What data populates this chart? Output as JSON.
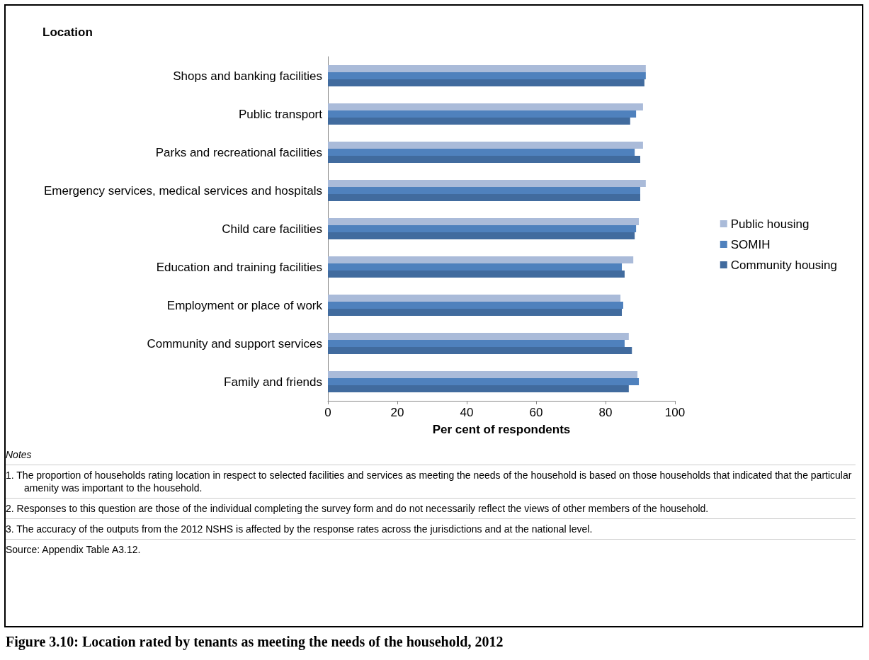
{
  "chart_data": {
    "type": "bar",
    "orientation": "horizontal",
    "title": "Figure 3.10: Location rated by tenants as meeting the needs of the household, 2012",
    "subtitle": "Location",
    "xlabel": "Per cent of respondents",
    "categories": [
      "Shops and banking facilities",
      "Public transport",
      "Parks and recreational facilities",
      "Emergency services, medical services and hospitals",
      "Child care facilities",
      "Education and training facilities",
      "Employment or place of work",
      "Community and support services",
      "Family and friends"
    ],
    "series": [
      {
        "name": "Public housing",
        "color": "#aabbd9",
        "values": [
          91.6,
          90.8,
          90.8,
          91.6,
          89.6,
          88.0,
          84.3,
          86.7,
          89.2
        ]
      },
      {
        "name": "SOMIH",
        "color": "#4f81bd",
        "values": [
          91.6,
          88.8,
          88.4,
          90.0,
          88.8,
          84.7,
          85.1,
          85.5,
          89.6
        ]
      },
      {
        "name": "Community housing",
        "color": "#416b9e",
        "values": [
          91.2,
          87.1,
          90.0,
          90.0,
          88.4,
          85.5,
          84.7,
          87.6,
          86.7
        ]
      }
    ],
    "xlim": [
      0,
      100
    ],
    "xticks": [
      0,
      20,
      40,
      60,
      80,
      100
    ],
    "grid": false,
    "legend": "right",
    "annotations": [
      "Notes",
      "1. The proportion of households rating location in respect to selected facilities and services as meeting the needs of the household is based on those households that indicated that the particular amenity was important to the household.",
      "2. Responses to this question are those of the individual completing the survey form and do not necessarily reflect the views of other members of the household.",
      "3. The accuracy of the outputs from the 2012 NSHS is affected by the response rates across the jurisdictions and at the national level.",
      "Source: Appendix Table A3.12."
    ]
  }
}
